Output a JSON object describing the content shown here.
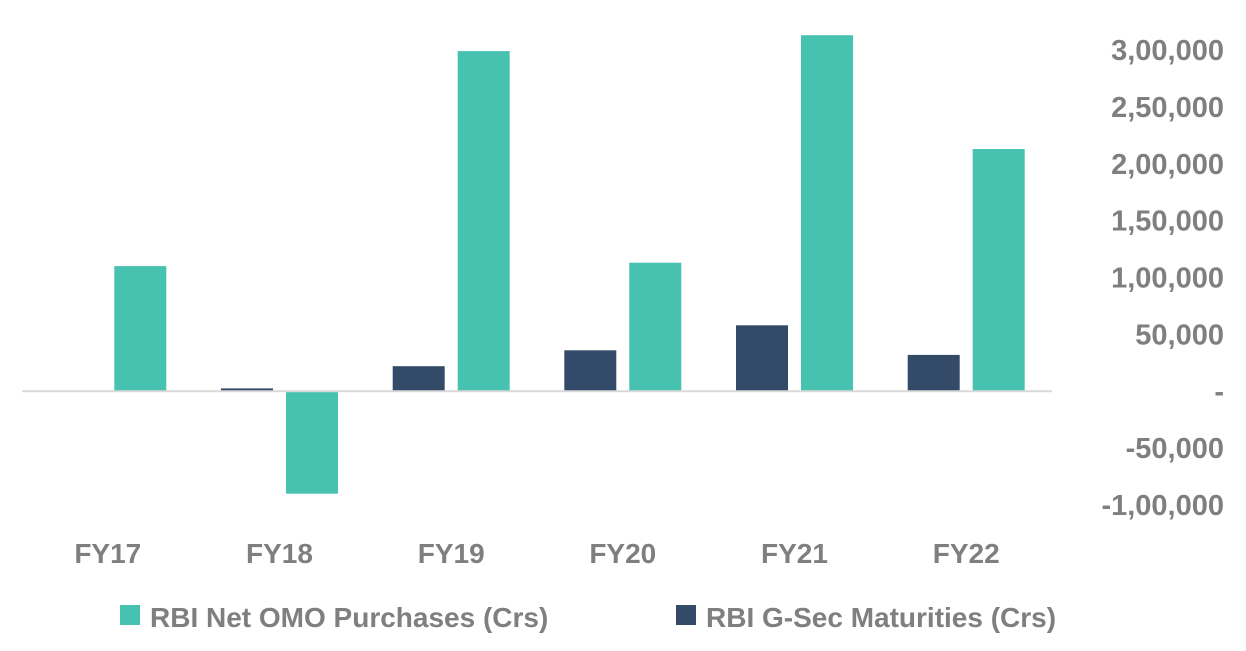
{
  "chart_data": {
    "type": "bar",
    "categories": [
      "FY17",
      "FY18",
      "FY19",
      "FY20",
      "FY21",
      "FY22"
    ],
    "series": [
      {
        "name": "RBI G-Sec Maturities (Crs)",
        "color": "#334b68",
        "values": [
          0,
          2500,
          22000,
          36000,
          58000,
          32000
        ]
      },
      {
        "name": "RBI Net OMO Purchases (Crs)",
        "color": "#47c2b1",
        "values": [
          110000,
          -90000,
          299000,
          113000,
          313000,
          213000
        ]
      }
    ],
    "y_axis": {
      "position": "right",
      "ylim": [
        -100000,
        300000
      ],
      "ticks": [
        {
          "value": 300000,
          "label": "3,00,000"
        },
        {
          "value": 250000,
          "label": "2,50,000"
        },
        {
          "value": 200000,
          "label": "2,00,000"
        },
        {
          "value": 150000,
          "label": "1,50,000"
        },
        {
          "value": 100000,
          "label": "1,00,000"
        },
        {
          "value": 50000,
          "label": "50,000"
        },
        {
          "value": 0,
          "label": "-"
        },
        {
          "value": -50000,
          "label": "-50,000"
        },
        {
          "value": -100000,
          "label": "-1,00,000"
        }
      ]
    },
    "grid": false,
    "legend": {
      "placement": "bottom",
      "entries": [
        {
          "name": "RBI Net OMO Purchases (Crs)",
          "color": "#47c2b1"
        },
        {
          "name": "RBI G-Sec Maturities (Crs)",
          "color": "#334b68"
        }
      ]
    },
    "title": "",
    "xlabel": "",
    "ylabel": ""
  }
}
